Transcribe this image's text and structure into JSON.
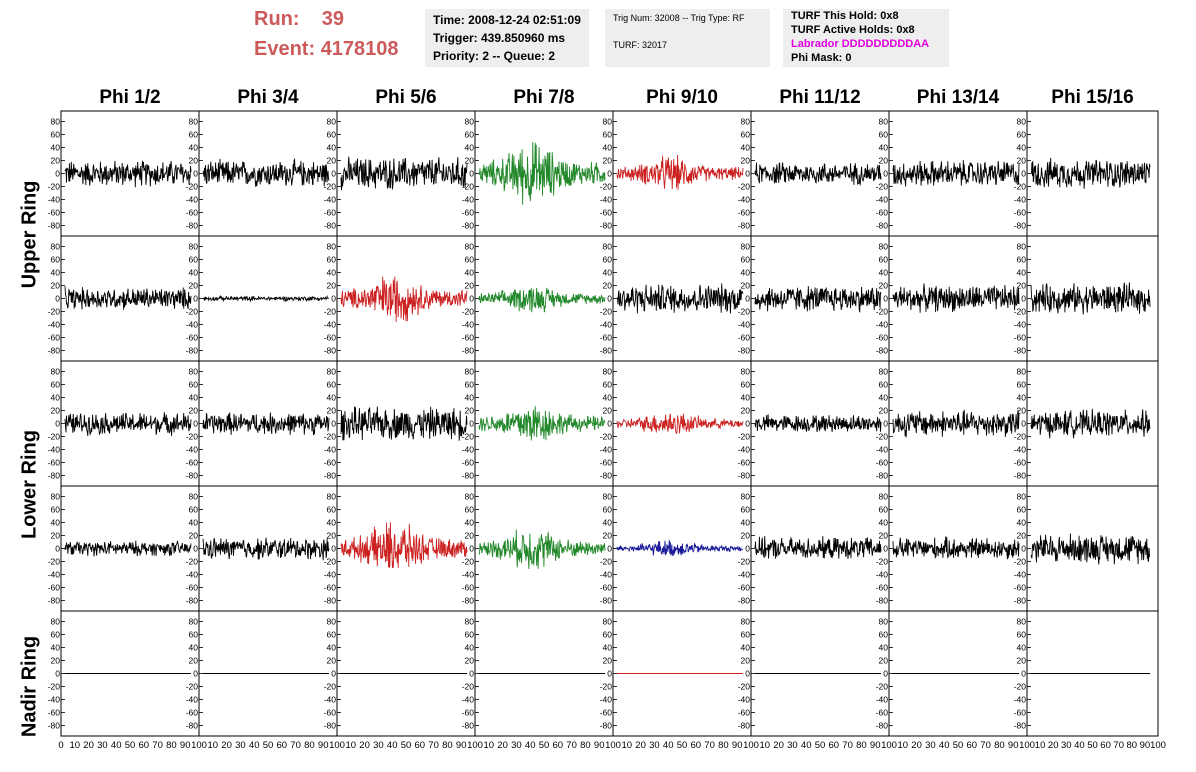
{
  "run": {
    "run_label": "Run:",
    "run_value": "39",
    "event_label": "Event:",
    "event_value": "4178108"
  },
  "time_box": {
    "time": "Time: 2008-12-24 02:51:09",
    "trigger": "Trigger: 439.850960 ms",
    "priority": "Priority: 2 -- Queue: 2"
  },
  "trig_box": {
    "trig": "Trig Num: 32008 -- Trig Type: RF",
    "turf": "TURF: 32017"
  },
  "turf_box": {
    "this_hold": "TURF This Hold: 0x8",
    "active_holds": "TURF Active Holds: 0x8",
    "labrador": "Labrador DDDDDDDDDAA",
    "phi_mask": "Phi Mask: 0"
  },
  "columns": [
    "Phi 1/2",
    "Phi 3/4",
    "Phi 5/6",
    "Phi 7/8",
    "Phi 9/10",
    "Phi 11/12",
    "Phi 13/14",
    "Phi 15/16"
  ],
  "row_labels": {
    "upper": "Upper Ring",
    "lower": "Lower Ring",
    "nadir": "Nadir Ring"
  },
  "colors": {
    "red_text": "#cc5a5a",
    "magenta": "#e000e0",
    "black": "#000000",
    "green": "#22882a",
    "red": "#cc2222",
    "blue": "#1a1a99",
    "info_bg": "#eeeeee"
  },
  "chart_data": {
    "type": "line",
    "ylim": [
      -90,
      90
    ],
    "xlim": [
      0,
      100
    ],
    "y_ticks": [
      -80,
      -60,
      -40,
      -20,
      0,
      20,
      40,
      60,
      80
    ],
    "x_ticks": [
      0,
      10,
      20,
      30,
      40,
      50,
      60,
      70,
      80,
      90,
      100
    ],
    "panel_colors": [
      [
        "black",
        "black",
        "black",
        "green",
        "red",
        "black",
        "black",
        "black"
      ],
      [
        "black",
        "black",
        "red",
        "green",
        "black",
        "black",
        "black",
        "black"
      ],
      [
        "black",
        "black",
        "black",
        "green",
        "red",
        "black",
        "black",
        "black"
      ],
      [
        "black",
        "black",
        "red",
        "green",
        "blue",
        "black",
        "black",
        "black"
      ],
      [
        "black",
        "black",
        "black",
        "black",
        "red",
        "black",
        "black",
        "black"
      ]
    ],
    "panel_amplitude": [
      [
        18,
        18,
        22,
        45,
        25,
        15,
        18,
        20
      ],
      [
        15,
        3,
        35,
        20,
        20,
        18,
        18,
        20
      ],
      [
        15,
        15,
        22,
        30,
        18,
        12,
        18,
        18
      ],
      [
        10,
        15,
        38,
        30,
        12,
        15,
        15,
        20
      ],
      [
        0,
        0,
        0,
        0,
        0,
        0,
        0,
        0
      ]
    ]
  }
}
